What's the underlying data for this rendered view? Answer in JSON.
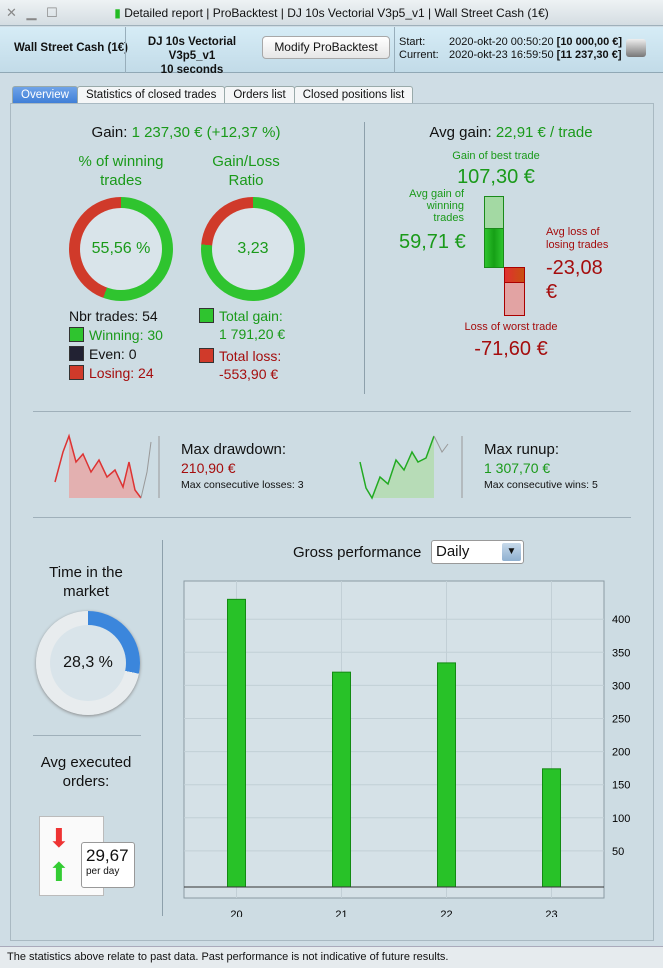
{
  "window": {
    "title_parts": [
      "Detailed report",
      "ProBacktest",
      "DJ 10s Vectorial V3p5_v1",
      "Wall Street Cash (1€)"
    ],
    "sep": "|"
  },
  "header": {
    "instrument": "Wall Street Cash (1€)",
    "system": "DJ 10s Vectorial V3p5_v1",
    "timeframe": "10 seconds",
    "modify_label": "Modify ProBacktest",
    "start_label": "Start:",
    "start_date": "2020-okt-20 00:50:20",
    "start_value": "[10 000,00 €]",
    "current_label": "Current:",
    "current_date": "2020-okt-23 16:59:50",
    "current_value": "[11 237,30 €]"
  },
  "tabs": [
    "Overview",
    "Statistics of closed trades",
    "Orders list",
    "Closed positions list"
  ],
  "gain": {
    "label": "Gain:",
    "value": "1 237,30 € (+12,37 %)",
    "winning_title": "% of winning trades",
    "winning_pct": "55,56 %",
    "winning_fraction": 0.5556,
    "ratio_title": "Gain/Loss Ratio",
    "ratio": "3,23",
    "ratio_fraction": 0.764
  },
  "trades": {
    "nbr": "Nbr trades: 54",
    "winning": "Winning: 30",
    "even": "Even: 0",
    "losing": "Losing: 24",
    "total_gain_label": "Total gain:",
    "total_gain": "1 791,20 €",
    "total_loss_label": "Total loss:",
    "total_loss": "-553,90 €"
  },
  "avg": {
    "label": "Avg gain:",
    "value": "22,91 € / trade",
    "best_label": "Gain of best trade",
    "best": "107,30 €",
    "avg_win_label": "Avg gain of winning trades",
    "avg_win": "59,71 €",
    "avg_loss_label": "Avg loss of losing trades",
    "avg_loss": "-23,08 €",
    "worst_label": "Loss of worst trade",
    "worst": "-71,60 €"
  },
  "drawdown": {
    "label": "Max drawdown:",
    "value": "210,90 €",
    "consec": "Max consecutive losses: 3"
  },
  "runup": {
    "label": "Max runup:",
    "value": "1 307,70 €",
    "consec": "Max consecutive wins: 5"
  },
  "market": {
    "title": "Time in the market",
    "value": "28,3 %",
    "fraction": 0.283
  },
  "orders": {
    "title": "Avg executed orders:",
    "value": "29,67",
    "unit": "per day"
  },
  "perf": {
    "title": "Gross performance",
    "period": "Daily"
  },
  "chart_data": {
    "type": "bar",
    "title": "Gross performance",
    "categories": [
      "20",
      "21",
      "22",
      "23"
    ],
    "values": [
      430,
      320,
      334,
      174
    ],
    "yticks": [
      50,
      100,
      150,
      200,
      250,
      300,
      350,
      400
    ],
    "ylim": [
      0,
      450
    ],
    "grid": true
  },
  "footer": "The statistics above relate to past data. Past performance is not indicative of future results."
}
